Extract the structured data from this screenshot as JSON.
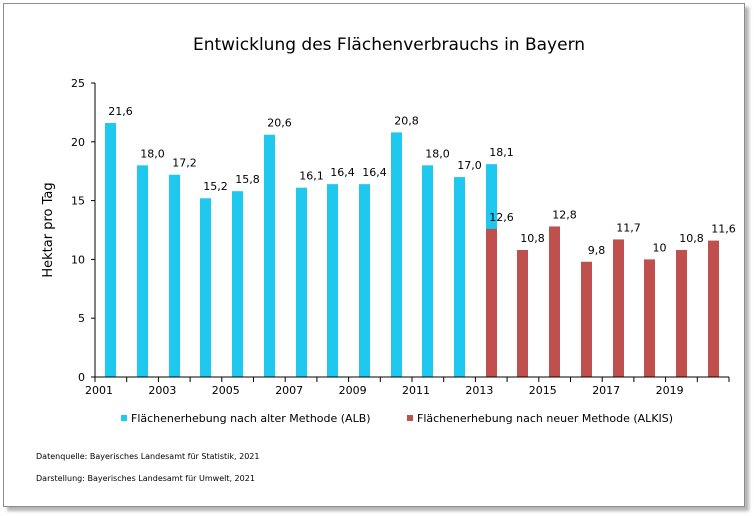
{
  "chart_data": {
    "type": "bar",
    "title": "Entwicklung des Flächenverbrauchs in Bayern",
    "xlabel": "",
    "ylabel": "Hektar pro Tag",
    "ylim": [
      0,
      25
    ],
    "yticks": [
      "0",
      "5",
      "10",
      "15",
      "20",
      "25"
    ],
    "categories": [
      "2001",
      "2002",
      "2003",
      "2004",
      "2005",
      "2006",
      "2007",
      "2008",
      "2009",
      "2010",
      "2011",
      "2012",
      "2013",
      "2014",
      "2015",
      "2016",
      "2017",
      "2018",
      "2019",
      "2020"
    ],
    "xtick_labels": [
      "2001",
      "",
      "2003",
      "",
      "2005",
      "",
      "2007",
      "",
      "2009",
      "",
      "2011",
      "",
      "2013",
      "",
      "2015",
      "",
      "2017",
      "",
      "2019",
      ""
    ],
    "grid": false,
    "legend": "bottom",
    "series": [
      {
        "name": "Flächenerhebung nach alter Methode (ALB)",
        "color": "#1fc8ef",
        "values": [
          21.6,
          18.0,
          17.2,
          15.2,
          15.8,
          20.6,
          16.1,
          16.4,
          16.4,
          20.8,
          18.0,
          17.0,
          18.1,
          null,
          null,
          null,
          null,
          null,
          null,
          null
        ],
        "labels": [
          "21,6",
          "18,0",
          "17,2",
          "15,2",
          "15,8",
          "20,6",
          "16,1",
          "16,4",
          "16,4",
          "20,8",
          "18,0",
          "17,0",
          "18,1",
          "",
          "",
          "",
          "",
          "",
          "",
          ""
        ]
      },
      {
        "name": "Flächenerhebung nach neuer Methode (ALKIS)",
        "color": "#c0504d",
        "values": [
          null,
          null,
          null,
          null,
          null,
          null,
          null,
          null,
          null,
          null,
          null,
          null,
          12.6,
          10.8,
          12.8,
          9.8,
          11.7,
          10,
          10.8,
          11.6
        ],
        "labels": [
          "",
          "",
          "",
          "",
          "",
          "",
          "",
          "",
          "",
          "",
          "",
          "",
          "12,6",
          "10,8",
          "12,8",
          "9,8",
          "11,7",
          "10",
          "10,8",
          "11,6"
        ]
      }
    ]
  },
  "notes": {
    "source": "Datenquelle:  Bayerisches Landesamt für Statistik, 2021",
    "created_by": "Darstellung: Bayerisches Landesamt für Umwelt, 2021"
  }
}
